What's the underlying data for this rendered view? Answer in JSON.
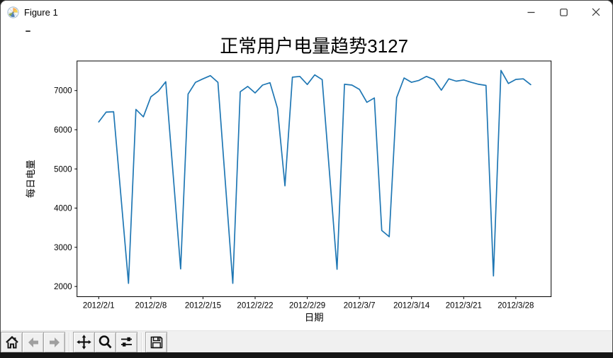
{
  "window": {
    "title": "Figure 1",
    "icons": {
      "app": "matplotlib-logo-icon",
      "minimize": "minimize-icon",
      "maximize": "maximize-icon",
      "close": "close-icon"
    }
  },
  "toolbar": {
    "buttons": [
      {
        "name": "home",
        "icon": "home-icon",
        "enabled": true
      },
      {
        "name": "back",
        "icon": "arrow-left-icon",
        "enabled": false
      },
      {
        "name": "forward",
        "icon": "arrow-right-icon",
        "enabled": false
      },
      {
        "name": "pan",
        "icon": "move-icon",
        "enabled": true
      },
      {
        "name": "zoom",
        "icon": "magnifier-icon",
        "enabled": true
      },
      {
        "name": "configure-subplots",
        "icon": "sliders-icon",
        "enabled": true
      },
      {
        "name": "save",
        "icon": "floppy-disk-icon",
        "enabled": true
      }
    ]
  },
  "colors": {
    "line": "#1f77b4",
    "axis": "#000000",
    "disabled_icon": "#9f9f9f",
    "enabled_icon": "#1a1a1a"
  },
  "chart_data": {
    "type": "line",
    "title": "正常用户电量趋势3127",
    "xlabel": "日期",
    "ylabel": "每日电量",
    "x": [
      "2012/2/1",
      "2012/2/2",
      "2012/2/3",
      "2012/2/4",
      "2012/2/5",
      "2012/2/6",
      "2012/2/7",
      "2012/2/8",
      "2012/2/9",
      "2012/2/10",
      "2012/2/11",
      "2012/2/12",
      "2012/2/13",
      "2012/2/14",
      "2012/2/15",
      "2012/2/16",
      "2012/2/17",
      "2012/2/18",
      "2012/2/19",
      "2012/2/20",
      "2012/2/21",
      "2012/2/22",
      "2012/2/23",
      "2012/2/24",
      "2012/2/25",
      "2012/2/26",
      "2012/2/27",
      "2012/2/28",
      "2012/2/29",
      "2012/3/1",
      "2012/3/2",
      "2012/3/3",
      "2012/3/4",
      "2012/3/5",
      "2012/3/6",
      "2012/3/7",
      "2012/3/8",
      "2012/3/9",
      "2012/3/10",
      "2012/3/11",
      "2012/3/12",
      "2012/3/13",
      "2012/3/14",
      "2012/3/15",
      "2012/3/16",
      "2012/3/17",
      "2012/3/18",
      "2012/3/19",
      "2012/3/20",
      "2012/3/21",
      "2012/3/22",
      "2012/3/23",
      "2012/3/24",
      "2012/3/25",
      "2012/3/26",
      "2012/3/27",
      "2012/3/28",
      "2012/3/29",
      "2012/3/30"
    ],
    "values": [
      6200,
      6450,
      6460,
      4270,
      2080,
      6520,
      6330,
      6840,
      6985,
      7225,
      4840,
      2450,
      6910,
      7210,
      7300,
      7380,
      7210,
      4650,
      2080,
      6970,
      7105,
      6940,
      7140,
      7200,
      6550,
      4570,
      7340,
      7360,
      7155,
      7400,
      7280,
      4870,
      2440,
      7160,
      7140,
      7030,
      6700,
      6810,
      3430,
      3270,
      6820,
      7320,
      7210,
      7260,
      7360,
      7280,
      7010,
      7300,
      7240,
      7270,
      7210,
      7160,
      7130,
      2270,
      7515,
      7180,
      7285,
      7300,
      7150
    ],
    "x_tick_labels": [
      "2012/2/1",
      "2012/2/8",
      "2012/2/15",
      "2012/2/22",
      "2012/2/29",
      "2012/3/7",
      "2012/3/14",
      "2012/3/21",
      "2012/3/28"
    ],
    "x_tick_indices": [
      0,
      7,
      14,
      21,
      28,
      35,
      42,
      49,
      56
    ],
    "y_ticks": [
      2000,
      3000,
      4000,
      5000,
      6000,
      7000
    ],
    "xlim": [
      -2.91,
      60.74
    ],
    "ylim": [
      1740,
      7755
    ],
    "line_color": "#1f77b4",
    "grid": false,
    "legend": null
  }
}
